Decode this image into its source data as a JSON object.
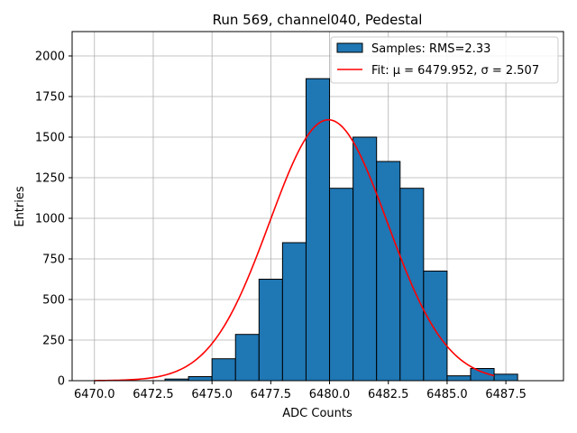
{
  "chart_data": {
    "type": "bar",
    "title": "Run 569, channel040, Pedestal",
    "xlabel": "ADC Counts",
    "ylabel": "Entries",
    "xlim": [
      6469.05,
      6489.95
    ],
    "ylim": [
      0,
      2150
    ],
    "grid": true,
    "legend_placement": "top-right",
    "x_ticks": [
      6470.0,
      6472.5,
      6475.0,
      6477.5,
      6480.0,
      6482.5,
      6485.0,
      6487.5
    ],
    "x_tick_labels": [
      "6470.0",
      "6472.5",
      "6475.0",
      "6477.5",
      "6480.0",
      "6482.5",
      "6485.0",
      "6487.5"
    ],
    "y_ticks": [
      0,
      250,
      500,
      750,
      1000,
      1250,
      1500,
      1750,
      2000
    ],
    "y_tick_labels": [
      "0",
      "250",
      "500",
      "750",
      "1000",
      "1250",
      "1500",
      "1750",
      "2000"
    ],
    "bin_edges": [
      6470,
      6471,
      6472,
      6473,
      6474,
      6475,
      6476,
      6477,
      6478,
      6479,
      6480,
      6481,
      6482,
      6483,
      6484,
      6485,
      6486,
      6487,
      6488,
      6489
    ],
    "counts": [
      0,
      0,
      0,
      10,
      25,
      135,
      285,
      625,
      850,
      1860,
      1185,
      1500,
      1350,
      1185,
      675,
      30,
      75,
      40,
      0
    ],
    "fit": {
      "mu": 6479.952,
      "sigma": 2.507,
      "amplitude": 1607,
      "x_range": [
        6470,
        6487
      ]
    },
    "series": [
      {
        "name": "Samples: RMS=2.33",
        "kind": "histogram",
        "color": "#1f77b4",
        "edgecolor": "#000000"
      },
      {
        "name": "Fit: μ = 6479.952, σ = 2.507",
        "kind": "line",
        "color": "#ff0000"
      }
    ]
  }
}
